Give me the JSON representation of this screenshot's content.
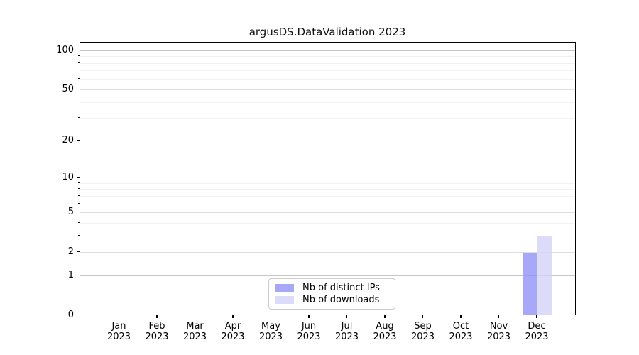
{
  "chart_data": {
    "type": "bar",
    "title": "argusDS.DataValidation 2023",
    "categories": [
      {
        "month": "Jan",
        "year": "2023"
      },
      {
        "month": "Feb",
        "year": "2023"
      },
      {
        "month": "Mar",
        "year": "2023"
      },
      {
        "month": "Apr",
        "year": "2023"
      },
      {
        "month": "May",
        "year": "2023"
      },
      {
        "month": "Jun",
        "year": "2023"
      },
      {
        "month": "Jul",
        "year": "2023"
      },
      {
        "month": "Aug",
        "year": "2023"
      },
      {
        "month": "Sep",
        "year": "2023"
      },
      {
        "month": "Oct",
        "year": "2023"
      },
      {
        "month": "Nov",
        "year": "2023"
      },
      {
        "month": "Dec",
        "year": "2023"
      }
    ],
    "series": [
      {
        "name": "Nb of distinct IPs",
        "color": "#9292f6",
        "opacity": 0.8,
        "values": [
          0,
          0,
          0,
          0,
          0,
          0,
          0,
          0,
          0,
          0,
          0,
          2
        ]
      },
      {
        "name": "Nb of downloads",
        "color": "#d3d3f9",
        "opacity": 0.8,
        "values": [
          0,
          0,
          0,
          0,
          0,
          0,
          0,
          0,
          0,
          0,
          0,
          3
        ]
      }
    ],
    "y_axis": {
      "scale": "log1p",
      "labeled_ticks": [
        0,
        1,
        2,
        5,
        10,
        20,
        50,
        100
      ],
      "decade_ticks": [
        1,
        10,
        100
      ],
      "minor_ticks": [
        3,
        4,
        6,
        7,
        8,
        9,
        30,
        40,
        60,
        70,
        80,
        90
      ],
      "max": 115,
      "ylim": [
        0,
        115
      ]
    },
    "legend": {
      "position": "lower center"
    },
    "grid": true,
    "colors": {
      "grid_major": "#c6c6c6",
      "grid_mid": "#dedede",
      "grid_minor": "#f1f1f1",
      "axis": "#000000",
      "background": "#ffffff"
    }
  }
}
